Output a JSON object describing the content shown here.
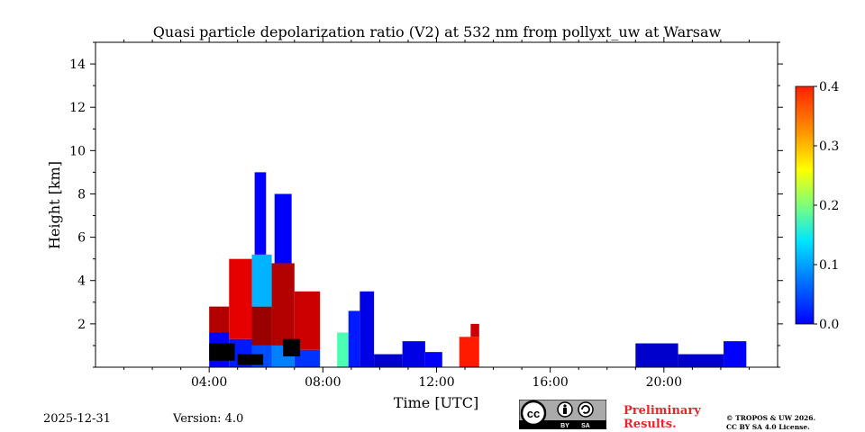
{
  "chart_data": {
    "type": "heatmap",
    "title": "Quasi particle depolarization ratio (V2) at 532 nm from pollyxt_uw at Warsaw",
    "xlabel": "Time [UTC]",
    "ylabel": "Height [km]",
    "xlim_hours": [
      0,
      24
    ],
    "ylim_km": [
      0,
      15
    ],
    "x_ticks": [
      {
        "hour": 4,
        "label": "04:00"
      },
      {
        "hour": 8,
        "label": "08:00"
      },
      {
        "hour": 12,
        "label": "12:00"
      },
      {
        "hour": 16,
        "label": "16:00"
      },
      {
        "hour": 20,
        "label": "20:00"
      }
    ],
    "y_ticks": [
      {
        "km": 2,
        "label": "2"
      },
      {
        "km": 4,
        "label": "4"
      },
      {
        "km": 6,
        "label": "6"
      },
      {
        "km": 8,
        "label": "8"
      },
      {
        "km": 10,
        "label": "10"
      },
      {
        "km": 12,
        "label": "12"
      },
      {
        "km": 14,
        "label": "14"
      }
    ],
    "colorbar": {
      "min": 0.0,
      "max": 0.4,
      "colormap": "jet",
      "ticks": [
        {
          "value": 0.0,
          "label": "0.0"
        },
        {
          "value": 0.1,
          "label": "0.1"
        },
        {
          "value": 0.2,
          "label": "0.2"
        },
        {
          "value": 0.3,
          "label": "0.3"
        },
        {
          "value": 0.4,
          "label": "0.4"
        }
      ]
    },
    "regions": [
      {
        "t0": 4.0,
        "t1": 4.7,
        "h0": 0.0,
        "h1": 1.6,
        "value": 0.05
      },
      {
        "t0": 4.0,
        "t1": 4.7,
        "h0": 1.6,
        "h1": 2.8,
        "value": 0.38
      },
      {
        "t0": 4.7,
        "t1": 5.5,
        "h0": 0.0,
        "h1": 1.3,
        "value": 0.06
      },
      {
        "t0": 4.7,
        "t1": 5.5,
        "h0": 1.3,
        "h1": 5.0,
        "value": 0.36
      },
      {
        "t0": 5.5,
        "t1": 6.2,
        "h0": 0.0,
        "h1": 1.0,
        "value": 0.08
      },
      {
        "t0": 5.5,
        "t1": 6.2,
        "h0": 1.0,
        "h1": 2.8,
        "value": 0.39
      },
      {
        "t0": 5.5,
        "t1": 6.2,
        "h0": 2.8,
        "h1": 5.2,
        "value": 0.12
      },
      {
        "t0": 5.6,
        "t1": 6.0,
        "h0": 5.2,
        "h1": 9.0,
        "value": 0.05
      },
      {
        "t0": 6.2,
        "t1": 7.0,
        "h0": 0.0,
        "h1": 1.0,
        "value": 0.1
      },
      {
        "t0": 6.2,
        "t1": 7.0,
        "h0": 1.0,
        "h1": 4.8,
        "value": 0.38
      },
      {
        "t0": 6.3,
        "t1": 6.9,
        "h0": 4.8,
        "h1": 8.0,
        "value": 0.05
      },
      {
        "t0": 7.0,
        "t1": 7.9,
        "h0": 0.0,
        "h1": 0.8,
        "value": 0.07
      },
      {
        "t0": 7.0,
        "t1": 7.9,
        "h0": 0.8,
        "h1": 3.5,
        "value": 0.37
      },
      {
        "t0": 8.5,
        "t1": 8.9,
        "h0": 0.0,
        "h1": 1.6,
        "value": 0.18
      },
      {
        "t0": 8.9,
        "t1": 9.3,
        "h0": 0.0,
        "h1": 2.6,
        "value": 0.06
      },
      {
        "t0": 9.3,
        "t1": 9.8,
        "h0": 0.0,
        "h1": 3.5,
        "value": 0.04
      },
      {
        "t0": 9.8,
        "t1": 10.8,
        "h0": 0.0,
        "h1": 0.6,
        "value": 0.03
      },
      {
        "t0": 10.8,
        "t1": 11.6,
        "h0": 0.0,
        "h1": 1.2,
        "value": 0.04
      },
      {
        "t0": 11.6,
        "t1": 12.2,
        "h0": 0.0,
        "h1": 0.7,
        "value": 0.05
      },
      {
        "t0": 12.8,
        "t1": 13.5,
        "h0": 0.0,
        "h1": 1.4,
        "value": 0.34
      },
      {
        "t0": 13.2,
        "t1": 13.5,
        "h0": 1.4,
        "h1": 2.0,
        "value": 0.37
      },
      {
        "t0": 19.0,
        "t1": 20.5,
        "h0": 0.0,
        "h1": 1.1,
        "value": 0.03
      },
      {
        "t0": 20.5,
        "t1": 22.1,
        "h0": 0.0,
        "h1": 0.6,
        "value": 0.03
      },
      {
        "t0": 22.1,
        "t1": 22.9,
        "h0": 0.0,
        "h1": 1.2,
        "value": 0.05
      }
    ],
    "invalid_regions": [
      {
        "t0": 4.0,
        "t1": 4.9,
        "h0": 0.3,
        "h1": 1.1
      },
      {
        "t0": 5.0,
        "t1": 5.9,
        "h0": 0.1,
        "h1": 0.6
      },
      {
        "t0": 6.6,
        "t1": 7.2,
        "h0": 0.5,
        "h1": 1.3
      }
    ]
  },
  "footer": {
    "date": "2025-12-31",
    "version": "Version: 4.0",
    "license_badge": {
      "icon": "cc-by-sa-icon",
      "cc": "cc",
      "by": "BY",
      "sa": "SA"
    },
    "preliminary_line1": "Preliminary",
    "preliminary_line2": "Results.",
    "copyright_line1": "© TROPOS & UW 2026.",
    "copyright_line2": "CC BY SA 4.0 License."
  },
  "colors": {
    "preliminary": "#e8262a",
    "badge_bg": "#aaaaaa",
    "badge_band": "#000000"
  }
}
